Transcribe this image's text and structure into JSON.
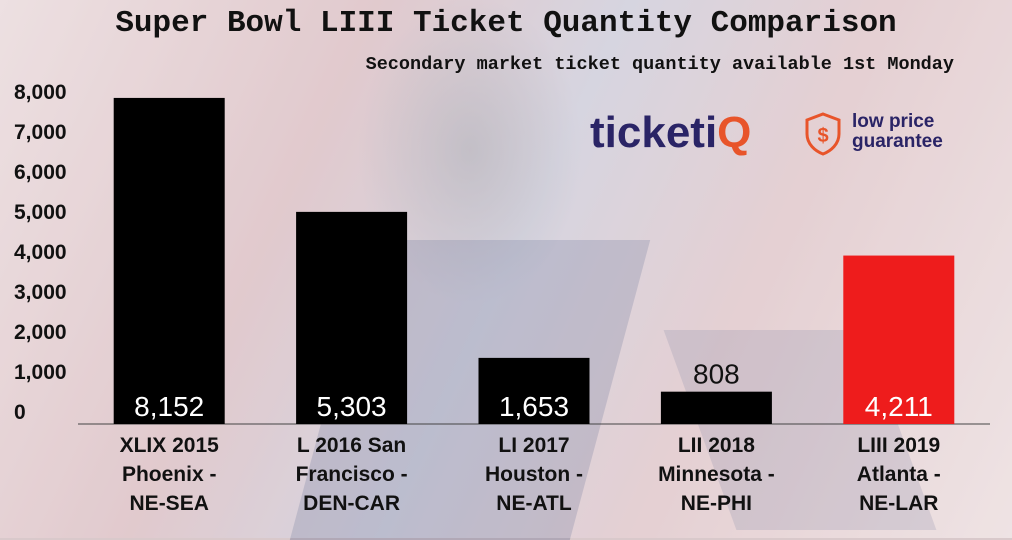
{
  "chart_data": {
    "type": "bar",
    "title": "Super Bowl LIII Ticket Quantity Comparison",
    "subtitle": "Secondary market ticket quantity available 1st Monday",
    "categories": [
      [
        "XLIX 2015",
        "Phoenix -",
        "NE-SEA"
      ],
      [
        "L 2016 San",
        "Francisco -",
        "DEN-CAR"
      ],
      [
        "LI 2017",
        "Houston -",
        "NE-ATL"
      ],
      [
        "LII 2018",
        "Minnesota -",
        "NE-PHI"
      ],
      [
        "LIII 2019",
        "Atlanta -",
        "NE-LAR"
      ]
    ],
    "values": [
      8152,
      5303,
      1653,
      808,
      4211
    ],
    "data_labels": [
      "8,152",
      "5,303",
      "1,653",
      "808",
      "4,211"
    ],
    "bar_colors": [
      "#000000",
      "#000000",
      "#000000",
      "#000000",
      "#ee1c1c"
    ],
    "data_label_colors": [
      "#ffffff",
      "#ffffff",
      "#ffffff",
      "#111111",
      "#ffffff"
    ],
    "yticks": [
      "0",
      "1,000",
      "2,000",
      "3,000",
      "4,000",
      "5,000",
      "6,000",
      "7,000",
      "8,000"
    ],
    "ytick_values": [
      0,
      1000,
      2000,
      3000,
      4000,
      5000,
      6000,
      7000,
      8000
    ],
    "ylim": [
      0,
      8500
    ],
    "grid": false,
    "legend": "none"
  },
  "logo": {
    "word_main": "ticketi",
    "word_accent": "Q",
    "tagline_1": "low price",
    "tagline_2": "guarantee",
    "badge_icon": "dollar-shield-icon"
  }
}
